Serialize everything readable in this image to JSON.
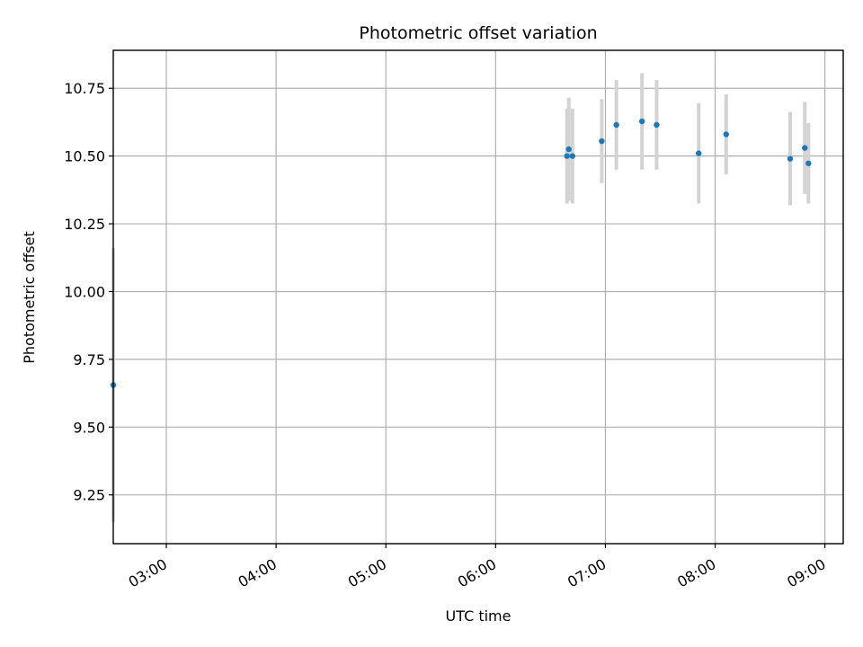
{
  "chart_data": {
    "type": "scatter",
    "title": "Photometric offset variation",
    "xlabel": "UTC time",
    "ylabel": "Photometric offset",
    "grid": true,
    "x_tick_labels": [
      "03:00",
      "04:00",
      "05:00",
      "06:00",
      "07:00",
      "08:00",
      "09:00"
    ],
    "y_tick_labels": [
      "9.25",
      "9.50",
      "9.75",
      "10.00",
      "10.25",
      "10.50",
      "10.75"
    ],
    "x_ticks": [
      "03:00",
      "04:00",
      "05:00",
      "06:00",
      "07:00",
      "08:00",
      "09:00"
    ],
    "y_ticks": [
      9.25,
      9.5,
      9.75,
      10.0,
      10.25,
      10.5,
      10.75
    ],
    "xlim": [
      "02:31",
      "09:10"
    ],
    "ylim": [
      9.07,
      10.89
    ],
    "point_color": "#1f77b4",
    "errorbar_color": "#d3d3d3",
    "points": [
      {
        "x": "02:31",
        "y": 9.655,
        "err": 0.505
      },
      {
        "x": "06:39",
        "y": 10.5,
        "err": 0.175
      },
      {
        "x": "06:40",
        "y": 10.525,
        "err": 0.19
      },
      {
        "x": "06:42",
        "y": 10.5,
        "err": 0.175
      },
      {
        "x": "06:58",
        "y": 10.555,
        "err": 0.155
      },
      {
        "x": "07:06",
        "y": 10.615,
        "err": 0.165
      },
      {
        "x": "07:20",
        "y": 10.628,
        "err": 0.178
      },
      {
        "x": "07:28",
        "y": 10.615,
        "err": 0.165
      },
      {
        "x": "07:51",
        "y": 10.51,
        "err": 0.185
      },
      {
        "x": "08:06",
        "y": 10.58,
        "err": 0.148
      },
      {
        "x": "08:41",
        "y": 10.49,
        "err": 0.172
      },
      {
        "x": "08:49",
        "y": 10.53,
        "err": 0.17
      },
      {
        "x": "08:51",
        "y": 10.473,
        "err": 0.148
      }
    ]
  }
}
